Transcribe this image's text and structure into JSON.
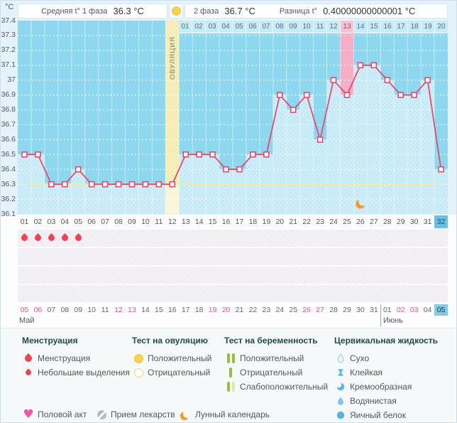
{
  "header": {
    "unit_label": "°C",
    "phase1_label": "Средняя t° 1 фаза",
    "phase1_value": "36.3 °C",
    "phase2_label": "2 фаза",
    "phase2_value": "36.7 °C",
    "diff_label": "Разница t°",
    "diff_value": "0.40000000000001 °C"
  },
  "chart_data": {
    "type": "line",
    "ylabel": "°C",
    "ylim": [
      36.1,
      37.4
    ],
    "ytick_step": 0.1,
    "ytick_labels": [
      "37.4",
      "37.3",
      "37.2",
      "37.1",
      "37",
      "36.9",
      "36.8",
      "36.7",
      "36.6",
      "36.5",
      "36.4",
      "36.3",
      "36.2",
      "36.1"
    ],
    "cycle_days": [
      1,
      2,
      3,
      4,
      5,
      6,
      7,
      8,
      9,
      10,
      11,
      12,
      13,
      14,
      15,
      16,
      17,
      18,
      19,
      20,
      21,
      22,
      23,
      24,
      25,
      26,
      27,
      28,
      29,
      30,
      31,
      32
    ],
    "temperatures": [
      36.5,
      36.5,
      36.3,
      36.3,
      36.4,
      36.3,
      36.3,
      36.3,
      36.3,
      36.3,
      36.3,
      36.3,
      36.5,
      36.5,
      36.5,
      36.4,
      36.4,
      36.5,
      36.5,
      36.9,
      36.8,
      36.9,
      36.6,
      37.0,
      36.9,
      37.1,
      37.1,
      37.0,
      36.9,
      36.9,
      37.0,
      36.4
    ],
    "coverline": 36.3,
    "ovulation_day": 12,
    "ovulation_label": "ОВУЛЯЦИЯ",
    "dpo_labels": [
      "01",
      "02",
      "03",
      "04",
      "05",
      "06",
      "07",
      "08",
      "09",
      "10",
      "11",
      "12",
      "13",
      "14",
      "15",
      "16",
      "17",
      "18",
      "19",
      "20"
    ],
    "dpo_highlight": "13",
    "highlighted_cycle_day": 25,
    "menstruation_days": [
      1,
      2,
      3,
      4,
      5
    ],
    "moon_day": 26,
    "grid": "dotted-horizontal",
    "colors": {
      "chart_bg": "#8dd7ef",
      "fill": "#cdeef9",
      "fill_dot": "#b2ddef",
      "ovulation_band": "#f8f0ba",
      "ovulation_dot": "#eadf9a",
      "highlight_pink": "#f6aec6",
      "line": "#e8486e",
      "coverline": "#f1ec9f",
      "current_day_bg": "#66c1e5",
      "weekend_text": "#f4548c",
      "accent_orange": "#f59a28"
    }
  },
  "calendar": {
    "day_numbers": [
      "01",
      "02",
      "03",
      "04",
      "05",
      "06",
      "07",
      "08",
      "09",
      "10",
      "11",
      "12",
      "13",
      "14",
      "15",
      "16",
      "17",
      "18",
      "19",
      "20",
      "21",
      "22",
      "23",
      "24",
      "25",
      "26",
      "27",
      "28",
      "29",
      "30",
      "31",
      "32"
    ],
    "current_day": "32",
    "dates": [
      {
        "label": "05",
        "weekend": true
      },
      {
        "label": "06",
        "weekend": true
      },
      {
        "label": "07",
        "weekend": false
      },
      {
        "label": "08",
        "weekend": false
      },
      {
        "label": "09",
        "weekend": false
      },
      {
        "label": "10",
        "weekend": false
      },
      {
        "label": "11",
        "weekend": false
      },
      {
        "label": "12",
        "weekend": true
      },
      {
        "label": "13",
        "weekend": true
      },
      {
        "label": "14",
        "weekend": false
      },
      {
        "label": "15",
        "weekend": false
      },
      {
        "label": "16",
        "weekend": false
      },
      {
        "label": "17",
        "weekend": false
      },
      {
        "label": "18",
        "weekend": false
      },
      {
        "label": "19",
        "weekend": true
      },
      {
        "label": "20",
        "weekend": true
      },
      {
        "label": "21",
        "weekend": false
      },
      {
        "label": "22",
        "weekend": false
      },
      {
        "label": "23",
        "weekend": false
      },
      {
        "label": "24",
        "weekend": false
      },
      {
        "label": "25",
        "weekend": false
      },
      {
        "label": "26",
        "weekend": true
      },
      {
        "label": "27",
        "weekend": true
      },
      {
        "label": "28",
        "weekend": false
      },
      {
        "label": "29",
        "weekend": false
      },
      {
        "label": "30",
        "weekend": false
      },
      {
        "label": "31",
        "weekend": false
      },
      {
        "label": "01",
        "weekend": false
      },
      {
        "label": "02",
        "weekend": true
      },
      {
        "label": "03",
        "weekend": true
      },
      {
        "label": "04",
        "weekend": false
      },
      {
        "label": "05",
        "weekend": false,
        "current": true
      }
    ],
    "months": [
      {
        "label": "Май"
      },
      {
        "label": "Июнь"
      }
    ]
  },
  "legend": {
    "sections": [
      {
        "title": "Менструация",
        "items": [
          {
            "icon": "drop-large",
            "label": "Менструация"
          },
          {
            "icon": "drop-small",
            "label": "Небольшие выделения"
          }
        ]
      },
      {
        "title": "Тест на овуляцию",
        "items": [
          {
            "icon": "circle-filled-yellow",
            "label": "Положительный"
          },
          {
            "icon": "circle-outline-yellow",
            "label": "Отрицательный"
          }
        ]
      },
      {
        "title": "Тест на беременность",
        "items": [
          {
            "icon": "bars-two-green",
            "label": "Положительный"
          },
          {
            "icon": "bar-one-green",
            "label": "Отрицательный"
          },
          {
            "icon": "bars-weak-green",
            "label": "Слабоположительный"
          }
        ]
      },
      {
        "title": "Цервикальная жидкость",
        "items": [
          {
            "icon": "droplet-outline",
            "label": "Сухо"
          },
          {
            "icon": "sticky",
            "label": "Клейкая"
          },
          {
            "icon": "creamy",
            "label": "Кремообразная"
          },
          {
            "icon": "droplet-filled",
            "label": "Водянистая"
          },
          {
            "icon": "circle-filled-blue",
            "label": "Яичный белок"
          }
        ]
      }
    ],
    "bottom": [
      {
        "icon": "heart",
        "label": "Половой акт"
      },
      {
        "icon": "pill",
        "label": "Прием лекарств"
      },
      {
        "icon": "moon",
        "label": "Лунный календарь"
      }
    ]
  }
}
